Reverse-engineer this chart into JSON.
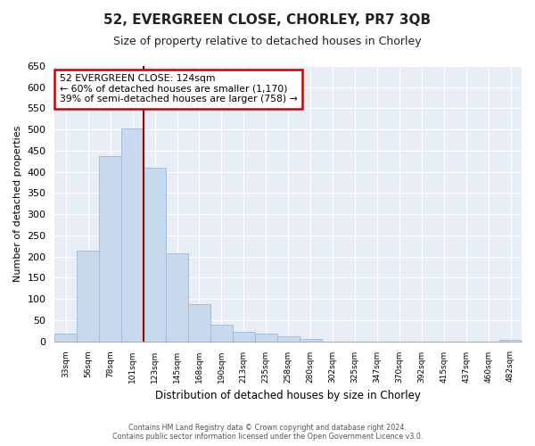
{
  "title": "52, EVERGREEN CLOSE, CHORLEY, PR7 3QB",
  "subtitle": "Size of property relative to detached houses in Chorley",
  "xlabel": "Distribution of detached houses by size in Chorley",
  "ylabel": "Number of detached properties",
  "bin_labels": [
    "33sqm",
    "56sqm",
    "78sqm",
    "101sqm",
    "123sqm",
    "145sqm",
    "168sqm",
    "190sqm",
    "213sqm",
    "235sqm",
    "258sqm",
    "280sqm",
    "302sqm",
    "325sqm",
    "347sqm",
    "370sqm",
    "392sqm",
    "415sqm",
    "437sqm",
    "460sqm",
    "482sqm"
  ],
  "bar_values": [
    18,
    213,
    438,
    503,
    410,
    207,
    88,
    40,
    22,
    18,
    12,
    5,
    0,
    0,
    0,
    0,
    0,
    0,
    0,
    0,
    3
  ],
  "bar_color": "#c8d9ed",
  "bar_edge_color": "#9ab8d8",
  "vline_color": "#990000",
  "annotation_box_line1": "52 EVERGREEN CLOSE: 124sqm",
  "annotation_box_line2": "← 60% of detached houses are smaller (1,170)",
  "annotation_box_line3": "39% of semi-detached houses are larger (758) →",
  "annotation_box_bg": "#ffffff",
  "annotation_box_edge": "#cc0000",
  "ylim": [
    0,
    650
  ],
  "yticks": [
    0,
    50,
    100,
    150,
    200,
    250,
    300,
    350,
    400,
    450,
    500,
    550,
    600,
    650
  ],
  "footer_line1": "Contains HM Land Registry data © Crown copyright and database right 2024.",
  "footer_line2": "Contains public sector information licensed under the Open Government Licence v3.0.",
  "bg_color": "#ffffff",
  "plot_bg_color": "#e8eef5",
  "grid_color": "#ffffff"
}
